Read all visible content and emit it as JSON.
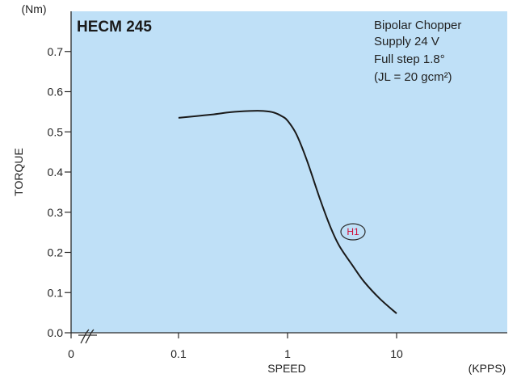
{
  "colors": {
    "plot_background": "#bfe0f7",
    "axis": "#2a2a2a",
    "curve": "#1a1a1a",
    "curve_label": "#d0103a"
  },
  "chart_data": {
    "type": "line",
    "title": "HECM 245",
    "annotations": [
      "Bipolar Chopper",
      "Supply 24 V",
      "Full step 1.8°",
      "(JL = 20 gcm²)"
    ],
    "xlabel": "SPEED",
    "xunit": "(KPPS)",
    "ylabel": "TORQUE",
    "yunit": "(Nm)",
    "xscale": "log",
    "xlim": [
      0.1,
      100
    ],
    "ylim": [
      0,
      0.8
    ],
    "x_origin_label": "0",
    "x_ticks": [
      {
        "value": 0.1,
        "label": "0.1"
      },
      {
        "value": 1,
        "label": "1"
      },
      {
        "value": 10,
        "label": "10"
      }
    ],
    "y_ticks": [
      {
        "value": 0.0,
        "label": "0.0"
      },
      {
        "value": 0.1,
        "label": "0.1"
      },
      {
        "value": 0.2,
        "label": "0.2"
      },
      {
        "value": 0.3,
        "label": "0.3"
      },
      {
        "value": 0.4,
        "label": "0.4"
      },
      {
        "value": 0.5,
        "label": "0.5"
      },
      {
        "value": 0.6,
        "label": "0.6"
      },
      {
        "value": 0.7,
        "label": "0.7"
      }
    ],
    "axis_break_symbol": "ff",
    "grid": false,
    "series": [
      {
        "name": "H1",
        "x": [
          0.1,
          0.2,
          0.3,
          0.45,
          0.6,
          0.75,
          0.9,
          1.0,
          1.2,
          1.5,
          2.0,
          2.5,
          3.0,
          4.0,
          5.0,
          7.0,
          10.0
        ],
        "y": [
          0.535,
          0.543,
          0.549,
          0.552,
          0.552,
          0.548,
          0.538,
          0.528,
          0.495,
          0.43,
          0.33,
          0.26,
          0.215,
          0.165,
          0.128,
          0.085,
          0.048
        ]
      }
    ]
  }
}
